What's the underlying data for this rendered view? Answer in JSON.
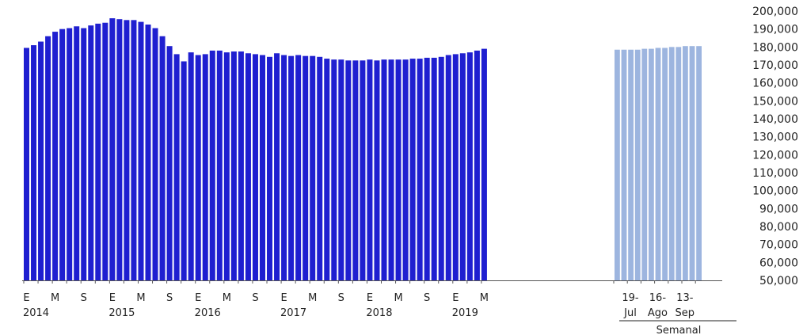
{
  "chart_data": {
    "type": "bar",
    "title": "",
    "xlabel": "",
    "ylabel": "",
    "ylim": [
      50000,
      200000
    ],
    "y_ticks": [
      50000,
      60000,
      70000,
      80000,
      90000,
      100000,
      110000,
      120000,
      130000,
      140000,
      150000,
      160000,
      170000,
      180000,
      190000,
      200000
    ],
    "y_tick_labels": [
      "50,000",
      "60,000",
      "70,000",
      "80,000",
      "90,000",
      "100,000",
      "110,000",
      "120,000",
      "130,000",
      "140,000",
      "150,000",
      "160,000",
      "170,000",
      "180,000",
      "190,000",
      "200,000"
    ],
    "grid": false,
    "legend": "none",
    "colors": {
      "monthly": "#1f1fd0",
      "weekly": "#9db5df",
      "axis": "#555555"
    },
    "series": [
      {
        "frequency": "monthly",
        "start": "2014-01",
        "values": [
          179500,
          181000,
          183000,
          186000,
          188500,
          190000,
          190500,
          191500,
          190500,
          192000,
          193000,
          193500,
          196000,
          195500,
          195000,
          195000,
          194000,
          192500,
          190500,
          186000,
          180500,
          176000,
          172000,
          177000,
          175500,
          176000,
          178000,
          178000,
          177000,
          177500,
          177500,
          176500,
          176000,
          175500,
          174500,
          176500,
          175500,
          175000,
          175500,
          175000,
          175000,
          174500,
          173500,
          173000,
          173000,
          172500,
          172500,
          172500,
          173000,
          172500,
          173000,
          173000,
          173000,
          173000,
          173500,
          173500,
          174000,
          174000,
          174500,
          175500,
          176000,
          176500,
          177000,
          178000,
          179000
        ]
      },
      {
        "frequency": "weekly",
        "values": [
          178500,
          178500,
          178500,
          178500,
          179000,
          179000,
          179500,
          179500,
          180000,
          180000,
          180500,
          180500,
          180500
        ]
      }
    ],
    "x_ticks": [
      {
        "month": "E",
        "year": "2014",
        "index": 0
      },
      {
        "month": "M",
        "year": "",
        "index": 4
      },
      {
        "month": "S",
        "year": "",
        "index": 8
      },
      {
        "month": "E",
        "year": "2015",
        "index": 12
      },
      {
        "month": "M",
        "year": "",
        "index": 16
      },
      {
        "month": "S",
        "year": "",
        "index": 20
      },
      {
        "month": "E",
        "year": "2016",
        "index": 24
      },
      {
        "month": "M",
        "year": "",
        "index": 28
      },
      {
        "month": "S",
        "year": "",
        "index": 32
      },
      {
        "month": "E",
        "year": "2017",
        "index": 36
      },
      {
        "month": "M",
        "year": "",
        "index": 40
      },
      {
        "month": "S",
        "year": "",
        "index": 44
      },
      {
        "month": "E",
        "year": "2018",
        "index": 48
      },
      {
        "month": "M",
        "year": "",
        "index": 52
      },
      {
        "month": "S",
        "year": "",
        "index": 56
      },
      {
        "month": "E",
        "year": "2019",
        "index": 60
      },
      {
        "month": "M",
        "year": "",
        "index": 64
      }
    ],
    "weekly_ticks": [
      {
        "line1": "19-",
        "line2": "Jul",
        "index": 1
      },
      {
        "line1": "16-",
        "line2": "Ago",
        "index": 5
      },
      {
        "line1": "13-",
        "line2": "Sep",
        "index": 9
      }
    ],
    "weekly_group_label": "Semanal"
  }
}
